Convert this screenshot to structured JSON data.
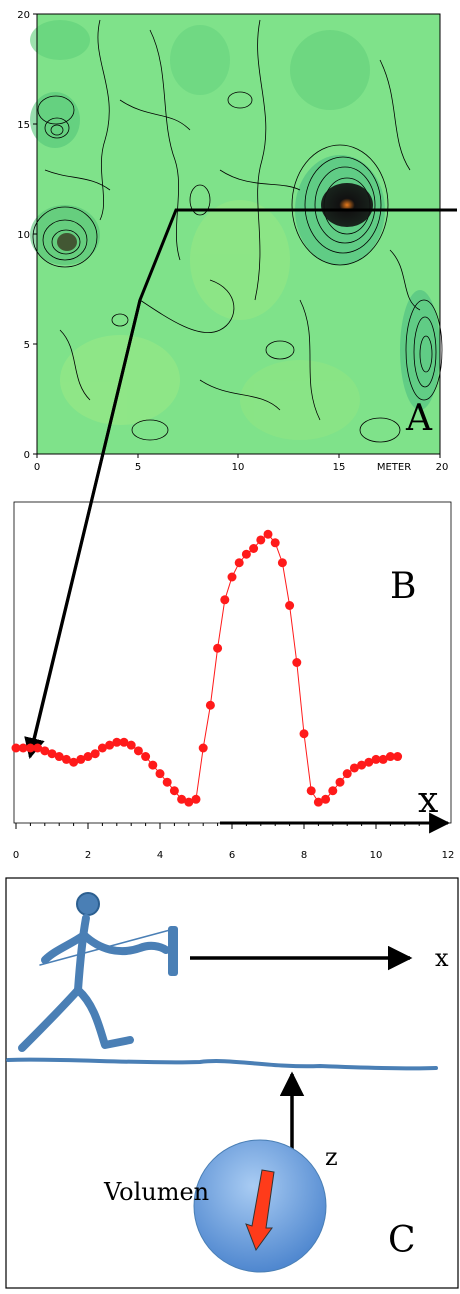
{
  "panel_a": {
    "label": "A",
    "y_ticks": [
      "0",
      "5",
      "10",
      "15",
      "20"
    ],
    "x_ticks": [
      "0",
      "5",
      "10",
      "15",
      "20"
    ],
    "x_unit": "METER",
    "colors": {
      "background": "#7fe28a",
      "contour": "#000000",
      "anomaly": "#111111",
      "hot": "#e87a1a"
    }
  },
  "panel_b": {
    "label": "B",
    "x_axis_symbol": "x",
    "x_ticks": [
      "0",
      "2",
      "4",
      "6",
      "8",
      "10",
      "12"
    ]
  },
  "panel_c": {
    "label": "C",
    "x_axis_symbol": "x",
    "depth_symbol": "z",
    "volume_label": "Volumen",
    "colors": {
      "figure": "#4a7fb5",
      "sphere": "#6fa2e0",
      "vector": "#ff3b1a"
    }
  },
  "chart_data": {
    "type": "scatter",
    "title": "",
    "xlabel": "x",
    "ylabel": "",
    "xlim": [
      0,
      12
    ],
    "series": [
      {
        "color": "#ff1a1a",
        "x": [
          0.0,
          0.2,
          0.4,
          0.6,
          0.8,
          1.0,
          1.2,
          1.4,
          1.6,
          1.8,
          2.0,
          2.2,
          2.4,
          2.6,
          2.8,
          3.0,
          3.2,
          3.4,
          3.6,
          3.8,
          4.0,
          4.2,
          4.4,
          4.6,
          4.8,
          5.0,
          5.2,
          5.4,
          5.6,
          5.8,
          6.0,
          6.2,
          6.4,
          6.6,
          6.8,
          7.0,
          7.2,
          7.4,
          7.6,
          7.8,
          8.0,
          8.2,
          8.4,
          8.6,
          8.8,
          9.0,
          9.2,
          9.4,
          9.6,
          9.8,
          10.0,
          10.2,
          10.4,
          10.6
        ],
        "y": [
          0.2,
          0.2,
          0.2,
          0.2,
          0.19,
          0.18,
          0.17,
          0.16,
          0.15,
          0.16,
          0.17,
          0.18,
          0.2,
          0.21,
          0.22,
          0.22,
          0.21,
          0.19,
          0.17,
          0.14,
          0.11,
          0.08,
          0.05,
          0.02,
          0.01,
          0.02,
          0.2,
          0.35,
          0.55,
          0.72,
          0.8,
          0.85,
          0.88,
          0.9,
          0.93,
          0.95,
          0.92,
          0.85,
          0.7,
          0.5,
          0.25,
          0.05,
          0.01,
          0.02,
          0.05,
          0.08,
          0.11,
          0.13,
          0.14,
          0.15,
          0.16,
          0.16,
          0.17,
          0.17
        ]
      }
    ]
  }
}
